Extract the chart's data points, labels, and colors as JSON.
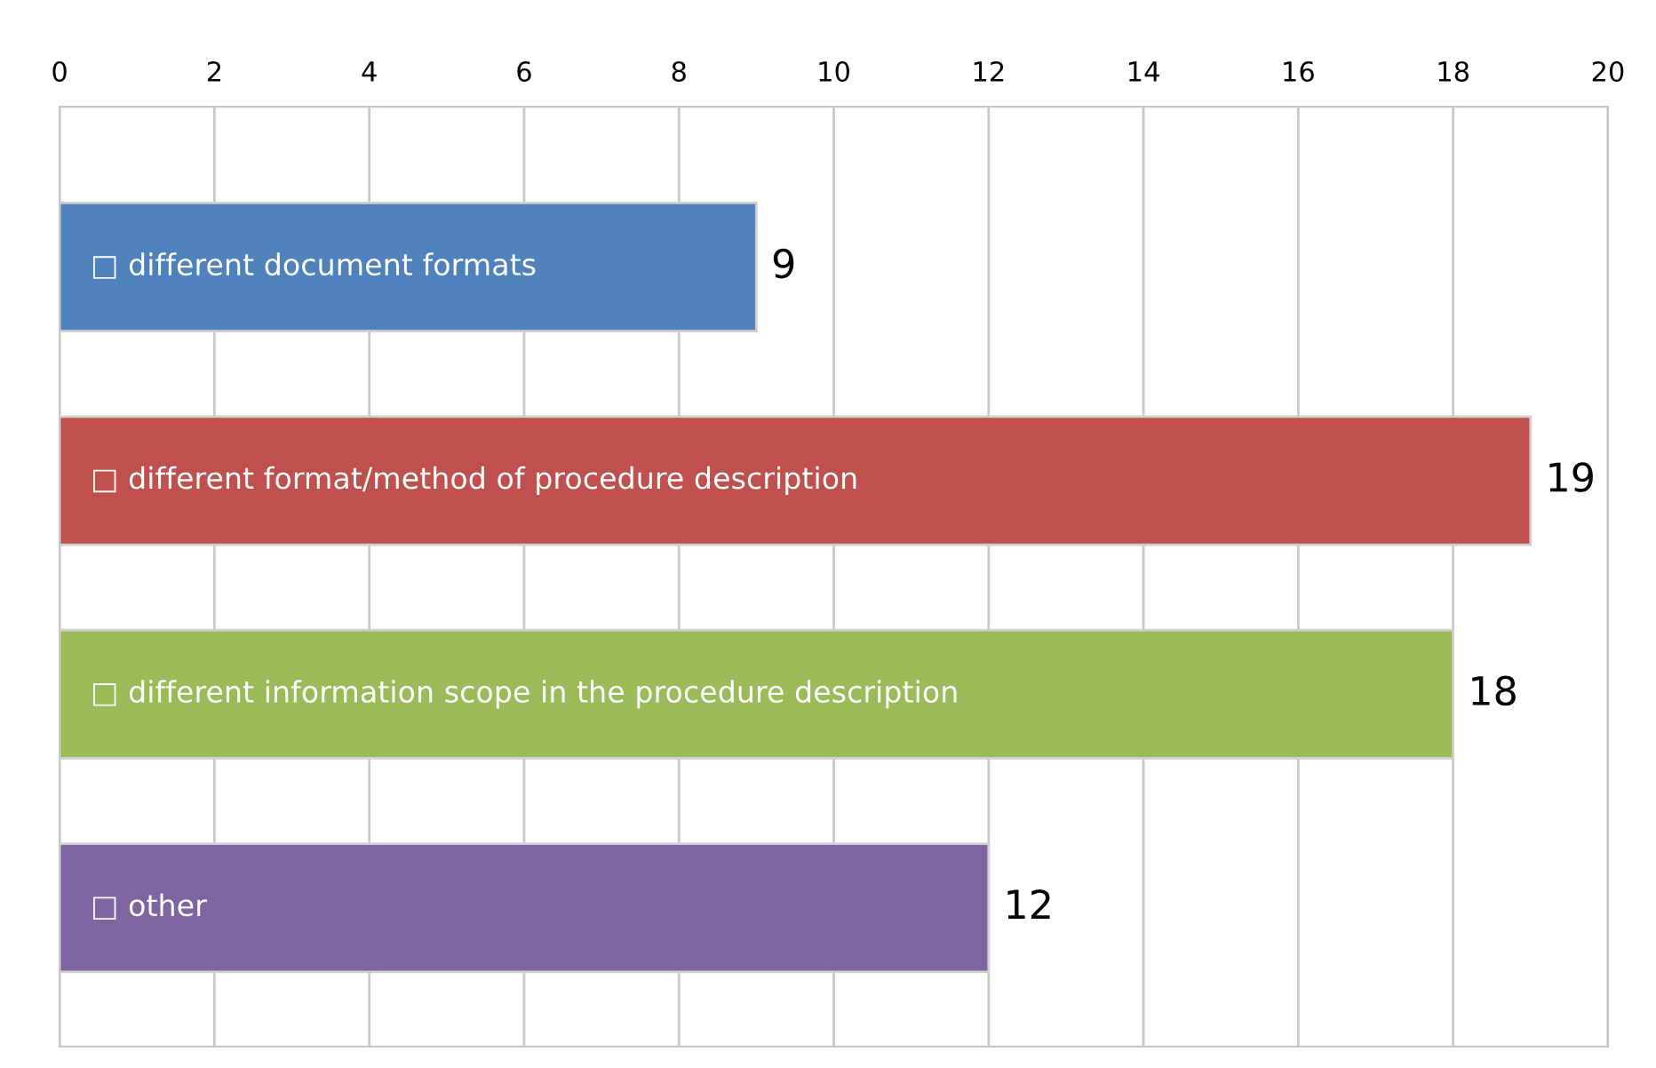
{
  "chart_data": {
    "type": "bar",
    "orientation": "horizontal",
    "categories": [
      "□ different document formats",
      "□ different format/method of procedure description",
      "□ different information scope in the procedure description",
      "□ other"
    ],
    "values": [
      9,
      19,
      18,
      12
    ],
    "colors": [
      "#4f81bd",
      "#c0504d",
      "#9bbb59",
      "#8064a2"
    ],
    "xlim": [
      0,
      20
    ],
    "xticks": [
      0,
      2,
      4,
      6,
      8,
      10,
      12,
      14,
      16,
      18,
      20
    ],
    "grid": "x",
    "data_labels": true
  }
}
